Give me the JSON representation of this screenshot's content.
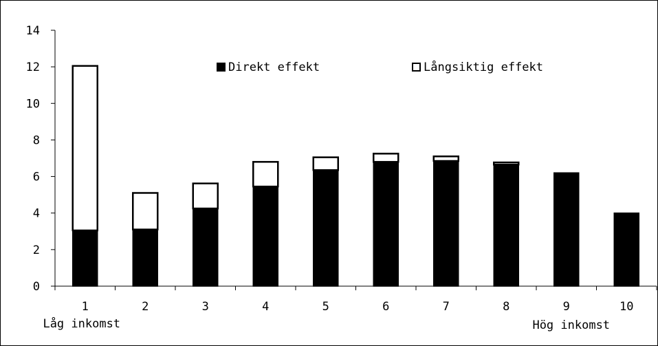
{
  "chart_data": {
    "type": "bar",
    "stacked": true,
    "categories": [
      "1",
      "2",
      "3",
      "4",
      "5",
      "6",
      "7",
      "8",
      "9",
      "10"
    ],
    "series": [
      {
        "name": "Direkt effekt",
        "color": "#000000",
        "values": [
          3.05,
          3.1,
          4.25,
          5.45,
          6.35,
          6.8,
          6.85,
          6.65,
          6.2,
          4.0
        ]
      },
      {
        "name": "Långsiktig effekt",
        "color": "#ffffff",
        "values": [
          9.0,
          2.0,
          1.37,
          1.35,
          0.7,
          0.45,
          0.25,
          0.12,
          0.0,
          0.0
        ]
      }
    ],
    "y_ticks": [
      "0",
      "2",
      "4",
      "6",
      "8",
      "10",
      "12",
      "14"
    ],
    "ylim": [
      0,
      14
    ],
    "x_annotations": {
      "low": "Låg inkomst",
      "high": "Hög inkomst"
    },
    "grid": false,
    "legend_position": "top-center"
  }
}
